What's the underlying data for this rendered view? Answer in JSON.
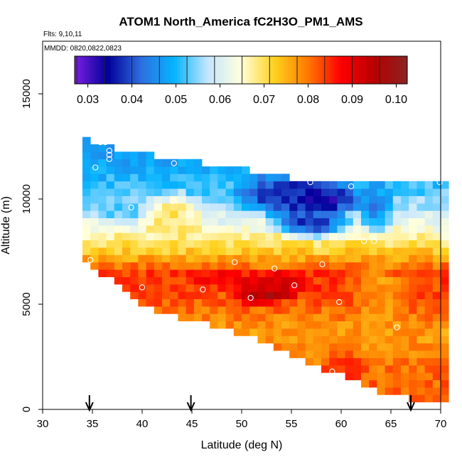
{
  "chart_data": {
    "type": "heatmap",
    "title": "ATOM1 North_America fC2H3O_PM1_AMS",
    "flights_note": "Flts: 9,10,11",
    "dates_note": "MMDD: 0820,0822,0823",
    "xlabel": "Latitude (deg N)",
    "ylabel": "Altitude (m)",
    "xlim": [
      30,
      70
    ],
    "ylim": [
      0,
      17500
    ],
    "x_ticks": [
      "30",
      "35",
      "40",
      "45",
      "50",
      "55",
      "60",
      "65",
      "70"
    ],
    "y_ticks": [
      "0",
      "5000",
      "10000",
      "15000"
    ],
    "colorbar": {
      "range": [
        0.027,
        0.1025
      ],
      "ticks": [
        "0.03",
        "0.04",
        "0.05",
        "0.06",
        "0.07",
        "0.08",
        "0.09",
        "0.10"
      ],
      "colors": [
        "#7b1fe0",
        "#00009a",
        "#2e6fe0",
        "#06b4ff",
        "#c4e6ff",
        "#ffffdc",
        "#ffd21e",
        "#ff7a00",
        "#ff0000",
        "#b70000",
        "#8b2323"
      ]
    },
    "cell_size": {
      "dlat": 0.8,
      "dalt": 350
    },
    "profile": {
      "lat": [
        34,
        35.5,
        37.5,
        40,
        42.5,
        45,
        47.5,
        50,
        52.5,
        55,
        57.5,
        60,
        62.5,
        65,
        67.5,
        70
      ],
      "top": [
        12900,
        12600,
        12400,
        12200,
        12000,
        11800,
        11650,
        11500,
        11200,
        11000,
        11000,
        11000,
        11000,
        11000,
        11000,
        11000
      ],
      "bottom": [
        7100,
        6600,
        5900,
        5000,
        4500,
        4200,
        3900,
        3600,
        3100,
        2600,
        2100,
        1600,
        1100,
        700,
        400,
        400
      ]
    },
    "layers": [
      {
        "alt_from": 11500,
        "alt_to": 13000,
        "value": 0.046
      },
      {
        "alt_from": 10600,
        "alt_to": 11500,
        "value": 0.05
      },
      {
        "alt_from": 9200,
        "alt_to": 10600,
        "value": 0.055
      },
      {
        "alt_from": 8000,
        "alt_to": 9200,
        "value": 0.064
      },
      {
        "alt_from": 7200,
        "alt_to": 8000,
        "value": 0.072
      },
      {
        "alt_from": 5700,
        "alt_to": 7200,
        "value": 0.084
      },
      {
        "alt_from": 4500,
        "alt_to": 5700,
        "value": 0.082
      },
      {
        "alt_from": 3000,
        "alt_to": 4500,
        "value": 0.077
      },
      {
        "alt_from": 0,
        "alt_to": 3000,
        "value": 0.081
      }
    ],
    "features": [
      {
        "lat": 57.5,
        "alt": 10000,
        "rlat": 6.0,
        "ralt": 1000,
        "value": 0.031
      },
      {
        "lat": 54.0,
        "alt": 10200,
        "rlat": 6.0,
        "ralt": 1200,
        "value": 0.037
      },
      {
        "lat": 57.0,
        "alt": 8900,
        "rlat": 5.0,
        "ralt": 900,
        "value": 0.038
      },
      {
        "lat": 63.5,
        "alt": 9600,
        "rlat": 2.0,
        "ralt": 1500,
        "value": 0.044
      },
      {
        "lat": 50.0,
        "alt": 12200,
        "rlat": 5.5,
        "ralt": 500,
        "value": 0.042
      },
      {
        "lat": 43.0,
        "alt": 9000,
        "rlat": 4.0,
        "ralt": 1500,
        "value": 0.07
      },
      {
        "lat": 37.5,
        "alt": 9600,
        "rlat": 4.0,
        "ralt": 900,
        "value": 0.052
      },
      {
        "lat": 52.0,
        "alt": 5400,
        "rlat": 3.5,
        "ralt": 500,
        "value": 0.1
      },
      {
        "lat": 53.0,
        "alt": 5900,
        "rlat": 5.0,
        "ralt": 800,
        "value": 0.093
      },
      {
        "lat": 48.0,
        "alt": 6300,
        "rlat": 4.0,
        "ralt": 600,
        "value": 0.088
      },
      {
        "lat": 64.0,
        "alt": 5500,
        "rlat": 3.5,
        "ralt": 1800,
        "value": 0.077
      },
      {
        "lat": 60.5,
        "alt": 2000,
        "rlat": 3.0,
        "ralt": 800,
        "value": 0.086
      }
    ],
    "flight_markers": [
      {
        "lat": 35.8,
        "alt": 12700
      },
      {
        "lat": 36.3,
        "alt": 12700
      },
      {
        "lat": 36.7,
        "alt": 12300
      },
      {
        "lat": 36.7,
        "alt": 12100
      },
      {
        "lat": 36.7,
        "alt": 11900
      },
      {
        "lat": 35.3,
        "alt": 11500
      },
      {
        "lat": 43.2,
        "alt": 11700
      },
      {
        "lat": 52.0,
        "alt": 11500
      },
      {
        "lat": 56.9,
        "alt": 10800
      },
      {
        "lat": 61.0,
        "alt": 10600
      },
      {
        "lat": 69.9,
        "alt": 10800
      },
      {
        "lat": 38.9,
        "alt": 9600
      },
      {
        "lat": 43.1,
        "alt": 9900
      },
      {
        "lat": 62.3,
        "alt": 8000
      },
      {
        "lat": 63.3,
        "alt": 8000
      },
      {
        "lat": 34.8,
        "alt": 7100
      },
      {
        "lat": 49.3,
        "alt": 7000
      },
      {
        "lat": 53.3,
        "alt": 6700
      },
      {
        "lat": 58.1,
        "alt": 6900
      },
      {
        "lat": 36.6,
        "alt": 6000
      },
      {
        "lat": 40.0,
        "alt": 5800
      },
      {
        "lat": 46.1,
        "alt": 5700
      },
      {
        "lat": 55.3,
        "alt": 5900
      },
      {
        "lat": 50.9,
        "alt": 5300
      },
      {
        "lat": 59.8,
        "alt": 5100
      },
      {
        "lat": 65.6,
        "alt": 3900
      },
      {
        "lat": 59.1,
        "alt": 1800
      }
    ],
    "latitude_arrows": [
      34.7,
      44.9,
      67.0
    ]
  }
}
